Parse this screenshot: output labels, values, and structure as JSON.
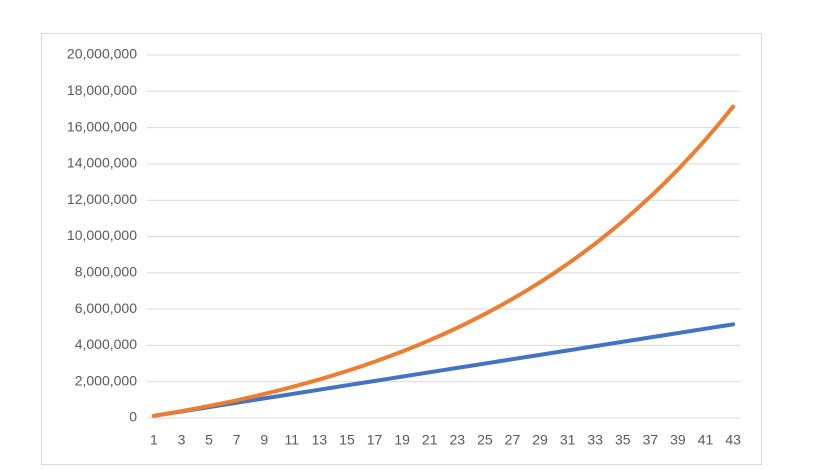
{
  "chart_data": {
    "type": "line",
    "categories": [
      "1",
      null,
      "3",
      null,
      "5",
      null,
      "7",
      null,
      "9",
      null,
      "11",
      null,
      "13",
      null,
      "15",
      null,
      "17",
      null,
      "19",
      null,
      "21",
      null,
      "23",
      null,
      "25",
      null,
      "27",
      null,
      "29",
      null,
      "31",
      null,
      "33",
      null,
      "35",
      null,
      "37",
      null,
      "39",
      null,
      "41",
      null,
      "43"
    ],
    "series": [
      {
        "color": "#4472c4",
        "values": [
          120000,
          240000,
          360000,
          480000,
          600000,
          720000,
          840000,
          960000,
          1080000,
          1200000,
          1320000,
          1440000,
          1560000,
          1680000,
          1800000,
          1920000,
          2040000,
          2160000,
          2280000,
          2400000,
          2520000,
          2640000,
          2760000,
          2880000,
          3000000,
          3120000,
          3240000,
          3360000,
          3480000,
          3600000,
          3720000,
          3840000,
          3960000,
          4080000,
          4200000,
          4320000,
          4440000,
          4560000,
          4680000,
          4800000,
          4920000,
          5040000,
          5160000
        ]
      },
      {
        "color": "#ed7d31",
        "values": [
          120000,
          246000,
          378300,
          517215,
          663076,
          816230,
          977042,
          1145894,
          1323189,
          1509348,
          1704816,
          1910057,
          2125560,
          2351837,
          2589429,
          2838901,
          3100843,
          3375886,
          3664680,
          3967914,
          4286310,
          4620626,
          4971657,
          5340240,
          5727252,
          6133614,
          6560295,
          7008310,
          7478726,
          7972662,
          8491295,
          9035859,
          9607652,
          10208034,
          10838436,
          11500358,
          12195377,
          12925146,
          13691403,
          14495973,
          15340772,
          16227811,
          17159202
        ]
      }
    ],
    "ylim": [
      0,
      20000000
    ],
    "yticks": [
      {
        "value": 0,
        "label": "0"
      },
      {
        "value": 2000000,
        "label": "2,000,000"
      },
      {
        "value": 4000000,
        "label": "4,000,000"
      },
      {
        "value": 6000000,
        "label": "6,000,000"
      },
      {
        "value": 8000000,
        "label": "8,000,000"
      },
      {
        "value": 10000000,
        "label": "10,000,000"
      },
      {
        "value": 12000000,
        "label": "12,000,000"
      },
      {
        "value": 14000000,
        "label": "14,000,000"
      },
      {
        "value": 16000000,
        "label": "16,000,000"
      },
      {
        "value": 18000000,
        "label": "18,000,000"
      },
      {
        "value": 20000000,
        "label": "20,000,000"
      }
    ],
    "grid": true
  }
}
